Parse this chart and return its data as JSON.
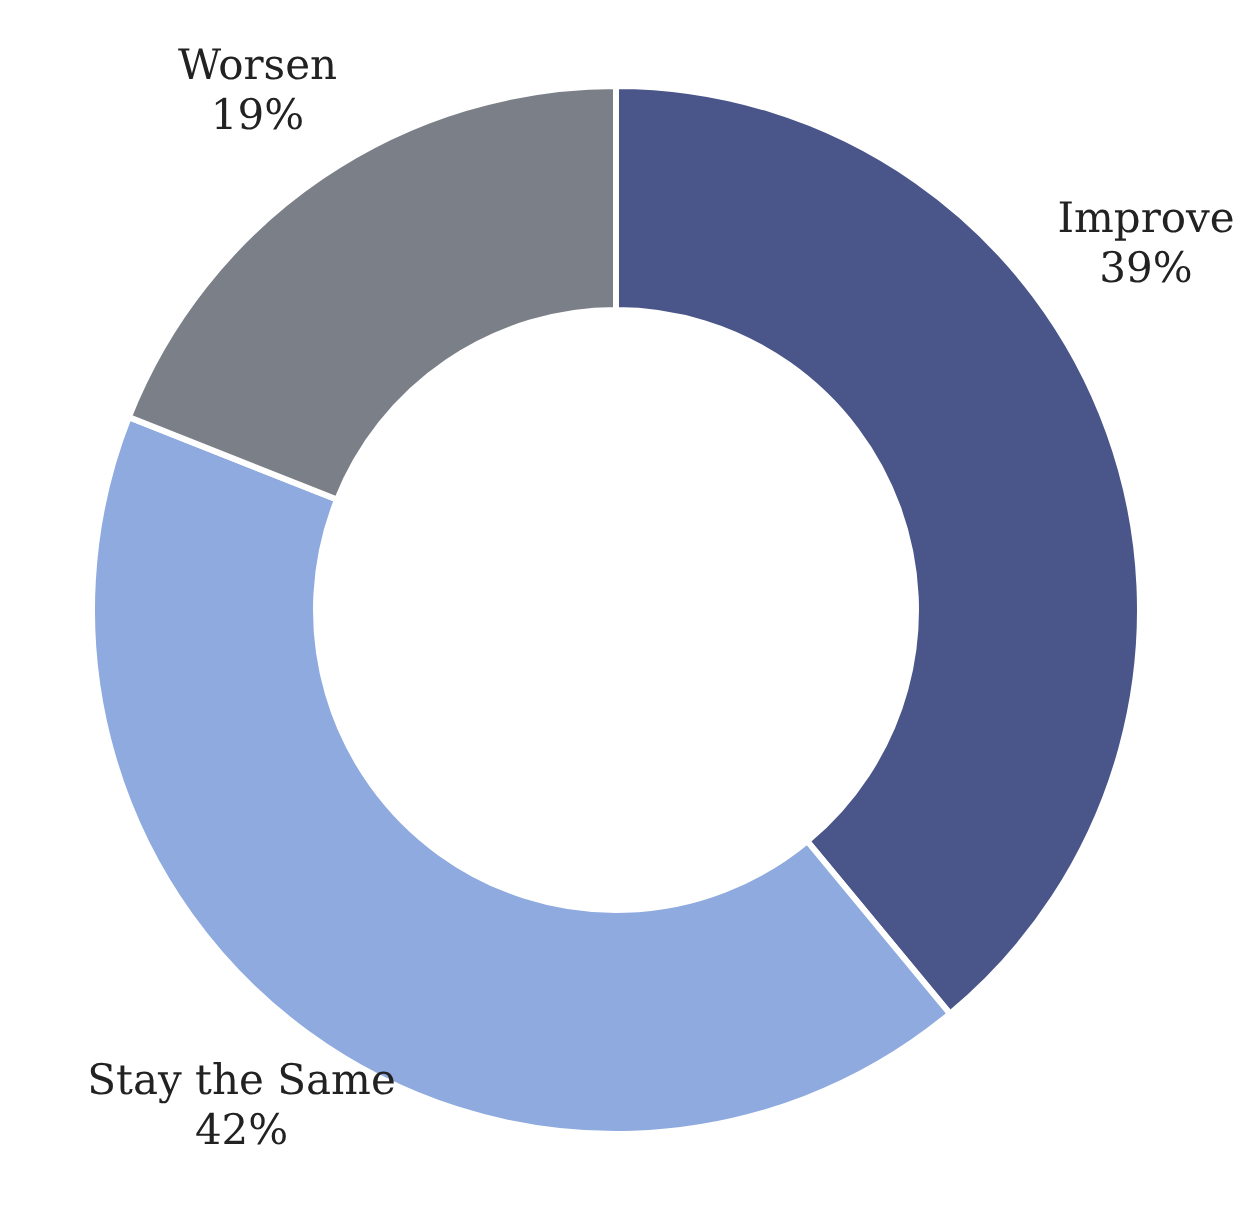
{
  "chart_data": {
    "type": "donut",
    "categories": [
      "Improve",
      "Stay the Same",
      "Worsen"
    ],
    "values": [
      39,
      42,
      19
    ],
    "colors": [
      "#4a5689",
      "#8eaadf",
      "#7b7f88"
    ],
    "value_labels": [
      "39%",
      "42%",
      "19%"
    ]
  }
}
